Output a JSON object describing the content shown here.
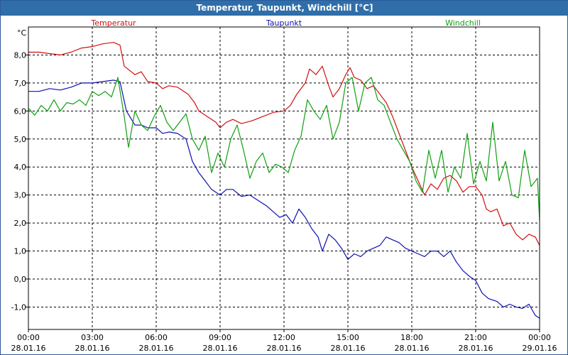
{
  "window": {
    "title": "Temperatur, Taupunkt, Windchill [°C]"
  },
  "chart_data": {
    "type": "line",
    "title": "Temperatur, Taupunkt, Windchill [°C]",
    "ylabel": "°C",
    "xlabel": "",
    "x_ticks": [
      {
        "time": "00:00",
        "date": "28.01.16"
      },
      {
        "time": "03:00",
        "date": "28.01.16"
      },
      {
        "time": "06:00",
        "date": "28.01.16"
      },
      {
        "time": "09:00",
        "date": "28.01.16"
      },
      {
        "time": "12:00",
        "date": "28.01.16"
      },
      {
        "time": "15:00",
        "date": "28.01.16"
      },
      {
        "time": "18:00",
        "date": "28.01.16"
      },
      {
        "time": "21:00",
        "date": "28.01.16"
      },
      {
        "time": "00:00",
        "date": "29.01.16"
      }
    ],
    "y_ticks": [
      "-1,0",
      "0,0",
      "1,0",
      "2,0",
      "3,0",
      "4,0",
      "5,0",
      "6,0",
      "7,0",
      "8,0"
    ],
    "y_tick_values": [
      -1,
      0,
      1,
      2,
      3,
      4,
      5,
      6,
      7,
      8
    ],
    "xlim": [
      0,
      24
    ],
    "ylim": [
      -1.8,
      9.0
    ],
    "grid": true,
    "legend_position": "top",
    "x_unit": "hours",
    "series": [
      {
        "name": "Temperatur",
        "color": "#d01010",
        "points": [
          [
            0,
            8.1
          ],
          [
            0.5,
            8.1
          ],
          [
            1.0,
            8.05
          ],
          [
            1.5,
            8.0
          ],
          [
            2.0,
            8.1
          ],
          [
            2.5,
            8.25
          ],
          [
            3.0,
            8.3
          ],
          [
            3.5,
            8.4
          ],
          [
            4.0,
            8.45
          ],
          [
            4.3,
            8.35
          ],
          [
            4.5,
            7.6
          ],
          [
            5.0,
            7.3
          ],
          [
            5.3,
            7.4
          ],
          [
            5.6,
            7.05
          ],
          [
            6.0,
            7.0
          ],
          [
            6.3,
            6.8
          ],
          [
            6.6,
            6.9
          ],
          [
            7.0,
            6.85
          ],
          [
            7.5,
            6.6
          ],
          [
            7.8,
            6.3
          ],
          [
            8.0,
            6.0
          ],
          [
            8.4,
            5.8
          ],
          [
            8.8,
            5.6
          ],
          [
            9.0,
            5.4
          ],
          [
            9.3,
            5.6
          ],
          [
            9.6,
            5.7
          ],
          [
            10.0,
            5.55
          ],
          [
            10.5,
            5.65
          ],
          [
            11.0,
            5.8
          ],
          [
            11.5,
            5.95
          ],
          [
            12.0,
            6.0
          ],
          [
            12.3,
            6.2
          ],
          [
            12.6,
            6.6
          ],
          [
            13.0,
            7.0
          ],
          [
            13.2,
            7.5
          ],
          [
            13.5,
            7.3
          ],
          [
            13.8,
            7.6
          ],
          [
            14.1,
            6.9
          ],
          [
            14.3,
            6.5
          ],
          [
            14.6,
            6.8
          ],
          [
            14.9,
            7.3
          ],
          [
            15.1,
            7.55
          ],
          [
            15.3,
            7.2
          ],
          [
            15.6,
            7.1
          ],
          [
            15.9,
            6.8
          ],
          [
            16.2,
            6.9
          ],
          [
            16.5,
            6.6
          ],
          [
            16.8,
            6.3
          ],
          [
            17.1,
            5.8
          ],
          [
            17.4,
            5.2
          ],
          [
            17.7,
            4.6
          ],
          [
            18.0,
            4.0
          ],
          [
            18.3,
            3.5
          ],
          [
            18.6,
            3.0
          ],
          [
            18.9,
            3.4
          ],
          [
            19.2,
            3.2
          ],
          [
            19.5,
            3.6
          ],
          [
            19.8,
            3.7
          ],
          [
            20.1,
            3.5
          ],
          [
            20.4,
            3.1
          ],
          [
            20.7,
            3.3
          ],
          [
            21.0,
            3.3
          ],
          [
            21.3,
            3.0
          ],
          [
            21.5,
            2.5
          ],
          [
            21.7,
            2.4
          ],
          [
            22.0,
            2.5
          ],
          [
            22.3,
            1.9
          ],
          [
            22.6,
            2.0
          ],
          [
            22.9,
            1.6
          ],
          [
            23.2,
            1.4
          ],
          [
            23.5,
            1.6
          ],
          [
            23.8,
            1.5
          ],
          [
            24.0,
            1.2
          ]
        ]
      },
      {
        "name": "Taupunkt",
        "color": "#1010b0",
        "points": [
          [
            0,
            6.7
          ],
          [
            0.5,
            6.7
          ],
          [
            1.0,
            6.8
          ],
          [
            1.5,
            6.75
          ],
          [
            2.0,
            6.85
          ],
          [
            2.5,
            7.0
          ],
          [
            3.0,
            7.0
          ],
          [
            3.5,
            7.05
          ],
          [
            4.0,
            7.1
          ],
          [
            4.3,
            7.05
          ],
          [
            4.6,
            6.0
          ],
          [
            5.0,
            5.5
          ],
          [
            5.3,
            5.5
          ],
          [
            5.6,
            5.4
          ],
          [
            6.0,
            5.4
          ],
          [
            6.3,
            5.2
          ],
          [
            6.6,
            5.25
          ],
          [
            7.0,
            5.2
          ],
          [
            7.4,
            5.0
          ],
          [
            7.7,
            4.2
          ],
          [
            8.0,
            3.8
          ],
          [
            8.3,
            3.5
          ],
          [
            8.6,
            3.2
          ],
          [
            9.0,
            3.0
          ],
          [
            9.3,
            3.2
          ],
          [
            9.6,
            3.2
          ],
          [
            10.0,
            2.95
          ],
          [
            10.4,
            3.0
          ],
          [
            10.8,
            2.8
          ],
          [
            11.2,
            2.6
          ],
          [
            11.5,
            2.4
          ],
          [
            11.8,
            2.2
          ],
          [
            12.1,
            2.3
          ],
          [
            12.4,
            2.0
          ],
          [
            12.7,
            2.5
          ],
          [
            13.0,
            2.2
          ],
          [
            13.3,
            1.8
          ],
          [
            13.6,
            1.5
          ],
          [
            13.8,
            1.0
          ],
          [
            14.1,
            1.6
          ],
          [
            14.4,
            1.4
          ],
          [
            14.7,
            1.1
          ],
          [
            15.0,
            0.7
          ],
          [
            15.3,
            0.9
          ],
          [
            15.6,
            0.8
          ],
          [
            15.9,
            1.0
          ],
          [
            16.2,
            1.1
          ],
          [
            16.5,
            1.2
          ],
          [
            16.8,
            1.5
          ],
          [
            17.1,
            1.4
          ],
          [
            17.4,
            1.3
          ],
          [
            17.7,
            1.1
          ],
          [
            18.0,
            1.0
          ],
          [
            18.3,
            0.9
          ],
          [
            18.6,
            0.8
          ],
          [
            18.9,
            1.0
          ],
          [
            19.2,
            1.0
          ],
          [
            19.5,
            0.8
          ],
          [
            19.8,
            1.0
          ],
          [
            20.1,
            0.6
          ],
          [
            20.4,
            0.3
          ],
          [
            20.7,
            0.1
          ],
          [
            21.0,
            -0.05
          ],
          [
            21.3,
            -0.5
          ],
          [
            21.6,
            -0.7
          ],
          [
            22.0,
            -0.8
          ],
          [
            22.3,
            -1.0
          ],
          [
            22.6,
            -0.9
          ],
          [
            22.9,
            -1.0
          ],
          [
            23.2,
            -1.05
          ],
          [
            23.5,
            -0.9
          ],
          [
            23.8,
            -1.3
          ],
          [
            24.0,
            -1.4
          ]
        ]
      },
      {
        "name": "Windchill",
        "color": "#10a010",
        "points": [
          [
            0,
            6.1
          ],
          [
            0.3,
            5.85
          ],
          [
            0.6,
            6.2
          ],
          [
            0.9,
            6.0
          ],
          [
            1.2,
            6.4
          ],
          [
            1.5,
            6.0
          ],
          [
            1.8,
            6.3
          ],
          [
            2.1,
            6.25
          ],
          [
            2.4,
            6.4
          ],
          [
            2.7,
            6.2
          ],
          [
            3.0,
            6.7
          ],
          [
            3.3,
            6.55
          ],
          [
            3.6,
            6.7
          ],
          [
            3.9,
            6.5
          ],
          [
            4.2,
            7.2
          ],
          [
            4.5,
            5.8
          ],
          [
            4.7,
            4.7
          ],
          [
            5.0,
            6.0
          ],
          [
            5.3,
            5.5
          ],
          [
            5.6,
            5.3
          ],
          [
            5.9,
            5.8
          ],
          [
            6.2,
            6.2
          ],
          [
            6.5,
            5.6
          ],
          [
            6.8,
            5.3
          ],
          [
            7.1,
            5.6
          ],
          [
            7.4,
            5.9
          ],
          [
            7.7,
            5.0
          ],
          [
            8.0,
            4.6
          ],
          [
            8.3,
            5.1
          ],
          [
            8.6,
            3.8
          ],
          [
            8.9,
            4.5
          ],
          [
            9.2,
            4.0
          ],
          [
            9.5,
            5.0
          ],
          [
            9.8,
            5.5
          ],
          [
            10.1,
            4.6
          ],
          [
            10.4,
            3.6
          ],
          [
            10.7,
            4.2
          ],
          [
            11.0,
            4.5
          ],
          [
            11.3,
            3.8
          ],
          [
            11.6,
            4.1
          ],
          [
            11.9,
            4.0
          ],
          [
            12.2,
            3.8
          ],
          [
            12.5,
            4.6
          ],
          [
            12.8,
            5.1
          ],
          [
            13.1,
            6.4
          ],
          [
            13.4,
            6.0
          ],
          [
            13.7,
            5.7
          ],
          [
            14.0,
            6.2
          ],
          [
            14.3,
            5.0
          ],
          [
            14.6,
            5.6
          ],
          [
            14.9,
            7.0
          ],
          [
            15.2,
            7.2
          ],
          [
            15.5,
            6.0
          ],
          [
            15.8,
            7.0
          ],
          [
            16.1,
            7.2
          ],
          [
            16.4,
            6.4
          ],
          [
            16.7,
            6.2
          ],
          [
            17.0,
            5.6
          ],
          [
            17.3,
            5.0
          ],
          [
            17.6,
            4.6
          ],
          [
            17.9,
            4.2
          ],
          [
            18.2,
            3.5
          ],
          [
            18.5,
            3.1
          ],
          [
            18.8,
            4.6
          ],
          [
            19.1,
            3.6
          ],
          [
            19.4,
            4.6
          ],
          [
            19.7,
            3.1
          ],
          [
            20.0,
            4.0
          ],
          [
            20.3,
            3.6
          ],
          [
            20.6,
            5.2
          ],
          [
            20.9,
            3.4
          ],
          [
            21.2,
            4.2
          ],
          [
            21.5,
            3.5
          ],
          [
            21.8,
            5.6
          ],
          [
            22.1,
            3.5
          ],
          [
            22.4,
            4.2
          ],
          [
            22.7,
            3.0
          ],
          [
            23.0,
            2.9
          ],
          [
            23.3,
            4.6
          ],
          [
            23.6,
            3.3
          ],
          [
            23.9,
            3.6
          ],
          [
            24.0,
            2.1
          ]
        ]
      }
    ]
  }
}
